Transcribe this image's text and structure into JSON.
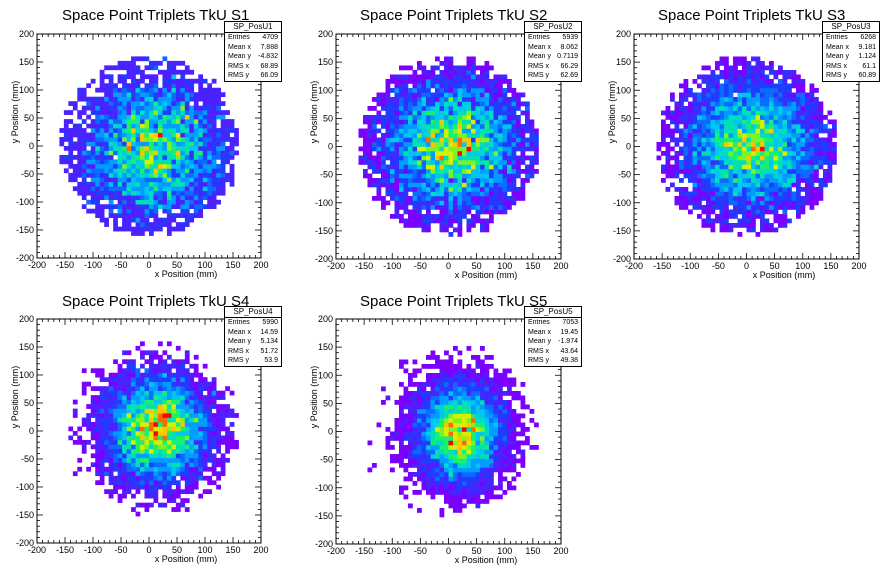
{
  "colors": {
    "palette": [
      "#7a00ff",
      "#4a22ff",
      "#1f3cff",
      "#0a6cff",
      "#009cff",
      "#00c6f0",
      "#00e0b8",
      "#18f070",
      "#7af428",
      "#d8f000",
      "#ffc400",
      "#ff6a00",
      "#ff0000"
    ]
  },
  "panels": [
    {
      "title": "Space Point Triplets TkU S1",
      "xlabel": "x Position (mm)",
      "ylabel": "y Position (mm)",
      "stats": {
        "name": "SP_PosU1",
        "rows": [
          {
            "label": "Entries",
            "value": "4709"
          },
          {
            "label": "Mean x",
            "value": "7.888"
          },
          {
            "label": "Mean y",
            "value": "-4.832"
          },
          {
            "label": "RMS x",
            "value": "68.89"
          },
          {
            "label": "RMS y",
            "value": "66.09"
          }
        ]
      }
    },
    {
      "title": "Space Point Triplets TkU S2",
      "xlabel": "x Position (mm)",
      "ylabel": "y Position (mm)",
      "stats": {
        "name": "SP_PosU2",
        "rows": [
          {
            "label": "Entries",
            "value": "5939"
          },
          {
            "label": "Mean x",
            "value": "8.062"
          },
          {
            "label": "Mean y",
            "value": "0.7119"
          },
          {
            "label": "RMS x",
            "value": "66.29"
          },
          {
            "label": "RMS y",
            "value": "62.69"
          }
        ]
      }
    },
    {
      "title": "Space Point Triplets TkU S3",
      "xlabel": "x Position (mm)",
      "ylabel": "y Position (mm)",
      "stats": {
        "name": "SP_PosU3",
        "rows": [
          {
            "label": "Entries",
            "value": "6268"
          },
          {
            "label": "Mean x",
            "value": "9.181"
          },
          {
            "label": "Mean y",
            "value": "1.124"
          },
          {
            "label": "RMS x",
            "value": "61.1"
          },
          {
            "label": "RMS y",
            "value": "60.89"
          }
        ]
      }
    },
    {
      "title": "Space Point Triplets TkU S4",
      "xlabel": "x Position (mm)",
      "ylabel": "y Position (mm)",
      "stats": {
        "name": "SP_PosU4",
        "rows": [
          {
            "label": "Entries",
            "value": "5990"
          },
          {
            "label": "Mean x",
            "value": "14.59"
          },
          {
            "label": "Mean y",
            "value": "5.134"
          },
          {
            "label": "RMS x",
            "value": "51.72"
          },
          {
            "label": "RMS y",
            "value": "53.9"
          }
        ]
      }
    },
    {
      "title": "Space Point Triplets TkU S5",
      "xlabel": "x Position (mm)",
      "ylabel": "y Position (mm)",
      "stats": {
        "name": "SP_PosU5",
        "rows": [
          {
            "label": "Entries",
            "value": "7053"
          },
          {
            "label": "Mean x",
            "value": "19.45"
          },
          {
            "label": "Mean y",
            "value": "-1.974"
          },
          {
            "label": "RMS x",
            "value": "43.64"
          },
          {
            "label": "RMS y",
            "value": "49.38"
          }
        ]
      }
    }
  ],
  "chart_data": [
    {
      "type": "heatmap",
      "title": "Space Point Triplets TkU S1",
      "xlabel": "x Position (mm)",
      "ylabel": "y Position (mm)",
      "xlim": [
        -200,
        200
      ],
      "ylim": [
        -200,
        200
      ],
      "xticks": [
        -200,
        -150,
        -100,
        -50,
        0,
        50,
        100,
        150,
        200
      ],
      "yticks": [
        -200,
        -150,
        -100,
        -50,
        0,
        50,
        100,
        150,
        200
      ],
      "bins": [
        50,
        50
      ],
      "entries": 4709,
      "mean": [
        7.888,
        -4.832
      ],
      "rms": [
        68.89,
        66.09
      ],
      "footprint_radius": 160,
      "peak_intensity": "medium"
    },
    {
      "type": "heatmap",
      "title": "Space Point Triplets TkU S2",
      "xlabel": "x Position (mm)",
      "ylabel": "y Position (mm)",
      "xlim": [
        -200,
        200
      ],
      "ylim": [
        -200,
        200
      ],
      "xticks": [
        -200,
        -150,
        -100,
        -50,
        0,
        50,
        100,
        150,
        200
      ],
      "yticks": [
        -200,
        -150,
        -100,
        -50,
        0,
        50,
        100,
        150,
        200
      ],
      "bins": [
        50,
        50
      ],
      "entries": 5939,
      "mean": [
        8.062,
        0.7119
      ],
      "rms": [
        66.29,
        62.69
      ],
      "footprint_radius": 160,
      "peak_intensity": "medium"
    },
    {
      "type": "heatmap",
      "title": "Space Point Triplets TkU S3",
      "xlabel": "x Position (mm)",
      "ylabel": "y Position (mm)",
      "xlim": [
        -200,
        200
      ],
      "ylim": [
        -200,
        200
      ],
      "xticks": [
        -200,
        -150,
        -100,
        -50,
        0,
        50,
        100,
        150,
        200
      ],
      "yticks": [
        -200,
        -150,
        -100,
        -50,
        0,
        50,
        100,
        150,
        200
      ],
      "bins": [
        50,
        50
      ],
      "entries": 6268,
      "mean": [
        9.181,
        1.124
      ],
      "rms": [
        61.1,
        60.89
      ],
      "footprint_radius": 160,
      "peak_intensity": "medium"
    },
    {
      "type": "heatmap",
      "title": "Space Point Triplets TkU S4",
      "xlabel": "x Position (mm)",
      "ylabel": "y Position (mm)",
      "xlim": [
        -200,
        200
      ],
      "ylim": [
        -200,
        200
      ],
      "xticks": [
        -200,
        -150,
        -100,
        -50,
        0,
        50,
        100,
        150,
        200
      ],
      "yticks": [
        -200,
        -150,
        -100,
        -50,
        0,
        50,
        100,
        150,
        200
      ],
      "bins": [
        50,
        50
      ],
      "entries": 5990,
      "mean": [
        14.59,
        5.134
      ],
      "rms": [
        51.72,
        53.9
      ],
      "footprint_radius": 160,
      "peak_intensity": "high"
    },
    {
      "type": "heatmap",
      "title": "Space Point Triplets TkU S5",
      "xlabel": "x Position (mm)",
      "ylabel": "y Position (mm)",
      "xlim": [
        -200,
        200
      ],
      "ylim": [
        -200,
        200
      ],
      "xticks": [
        -200,
        -150,
        -100,
        -50,
        0,
        50,
        100,
        150,
        200
      ],
      "yticks": [
        -200,
        -150,
        -100,
        -50,
        0,
        50,
        100,
        150,
        200
      ],
      "bins": [
        50,
        50
      ],
      "entries": 7053,
      "mean": [
        19.45,
        -1.974
      ],
      "rms": [
        43.64,
        49.38
      ],
      "footprint_radius": 160,
      "peak_intensity": "high"
    }
  ]
}
